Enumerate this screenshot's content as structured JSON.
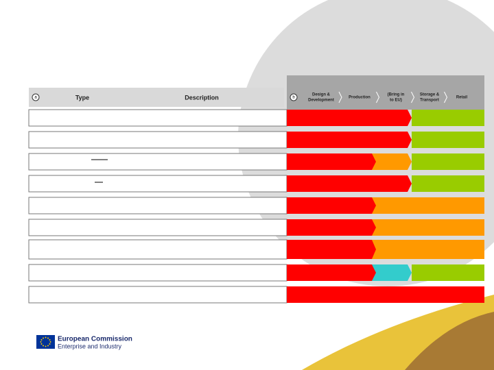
{
  "header": {
    "marker_a": "a",
    "type": "Type",
    "description": "Description",
    "marker_b": "b",
    "stages": [
      [
        "Design &",
        "Development"
      ],
      [
        "Production"
      ],
      [
        "(Bring in",
        "to EU)"
      ],
      [
        "Storage &",
        "Transport"
      ],
      [
        "Retail"
      ]
    ]
  },
  "footer": {
    "title": "European Commission",
    "subtitle": "Enterprise and Industry"
  }
}
